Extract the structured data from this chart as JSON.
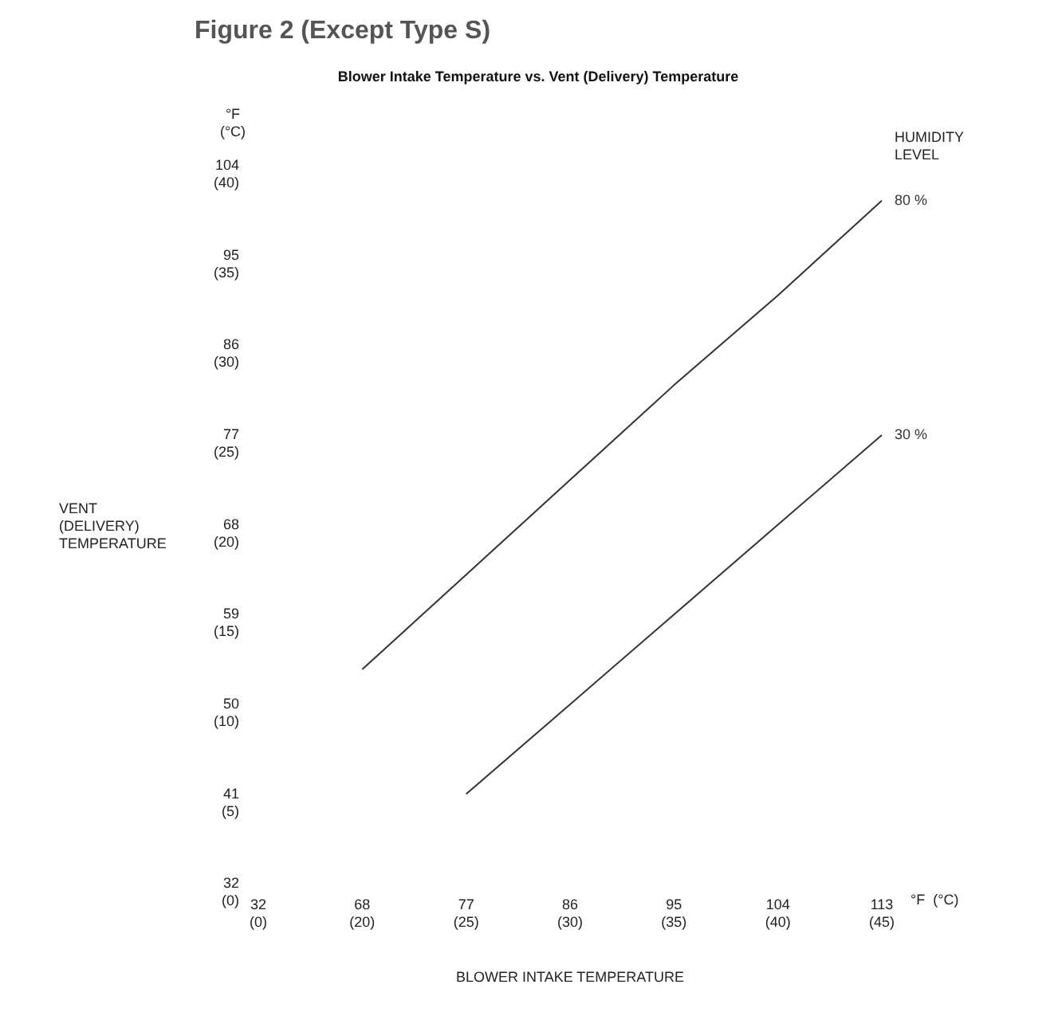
{
  "chart_data": {
    "type": "line",
    "title": "Figure 2 (Except Type S)",
    "subtitle": "Blower Intake Temperature vs. Vent (Delivery) Temperature",
    "xlabel": "BLOWER INTAKE TEMPERATURE",
    "ylabel": "VENT\n(DELIVERY)\nTEMPERATURE",
    "legend_title": "HUMIDITY\nLEVEL",
    "annotations": [
      "°F\n(°C)",
      "°F  (°C)"
    ],
    "categories": [
      "32\n(0)",
      "68\n(20)",
      "77\n(25)",
      "86\n(30)",
      "95\n(35)",
      "104\n(40)",
      "113\n(45)"
    ],
    "series": [
      {
        "name": "80 %",
        "color": "#333333",
        "axis": "y2",
        "values": [
          null,
          53.5,
          63,
          72.5,
          82,
          91,
          100.5
        ]
      },
      {
        "name": "30 %",
        "color": "#333333",
        "axis": "y2",
        "values": [
          null,
          null,
          41,
          50,
          59,
          68,
          77
        ]
      }
    ],
    "ylim": [
      0,
      40
    ],
    "yticks": [
      {
        "value": 0,
        "label": "(0)"
      },
      {
        "value": 5,
        "label": "(5)"
      },
      {
        "value": 10,
        "label": "(10)"
      },
      {
        "value": 15,
        "label": "(15)"
      },
      {
        "value": 20,
        "label": "(20)"
      },
      {
        "value": 25,
        "label": "(25)"
      },
      {
        "value": 30,
        "label": "(30)"
      },
      {
        "value": 35,
        "label": "(35)"
      },
      {
        "value": 40,
        "label": "(40)"
      }
    ],
    "y2lim": [
      32,
      104
    ],
    "y2ticks": [
      32,
      41,
      50,
      59,
      68,
      77,
      86,
      95,
      104
    ],
    "grid": false,
    "legend": false,
    "marker": "none",
    "line_style": "solid"
  }
}
